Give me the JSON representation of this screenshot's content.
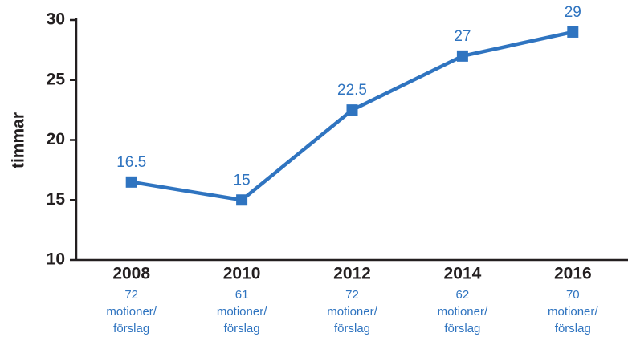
{
  "chart_data": {
    "type": "line",
    "y_label": "timmar",
    "categories": [
      "2008",
      "2010",
      "2012",
      "2014",
      "2016"
    ],
    "category_sublabels": [
      [
        "72",
        "motioner/",
        "förslag"
      ],
      [
        "61",
        "motioner/",
        "förslag"
      ],
      [
        "72",
        "motioner/",
        "förslag"
      ],
      [
        "62",
        "motioner/",
        "förslag"
      ],
      [
        "70",
        "motioner/",
        "förslag"
      ]
    ],
    "series": [
      {
        "name": "timmar",
        "color": "#2f74c0",
        "values": [
          16.5,
          15,
          22.5,
          27,
          29
        ]
      }
    ],
    "ylim": [
      10,
      30
    ],
    "yticks": [
      10,
      15,
      20,
      25,
      30
    ],
    "grid": false
  }
}
